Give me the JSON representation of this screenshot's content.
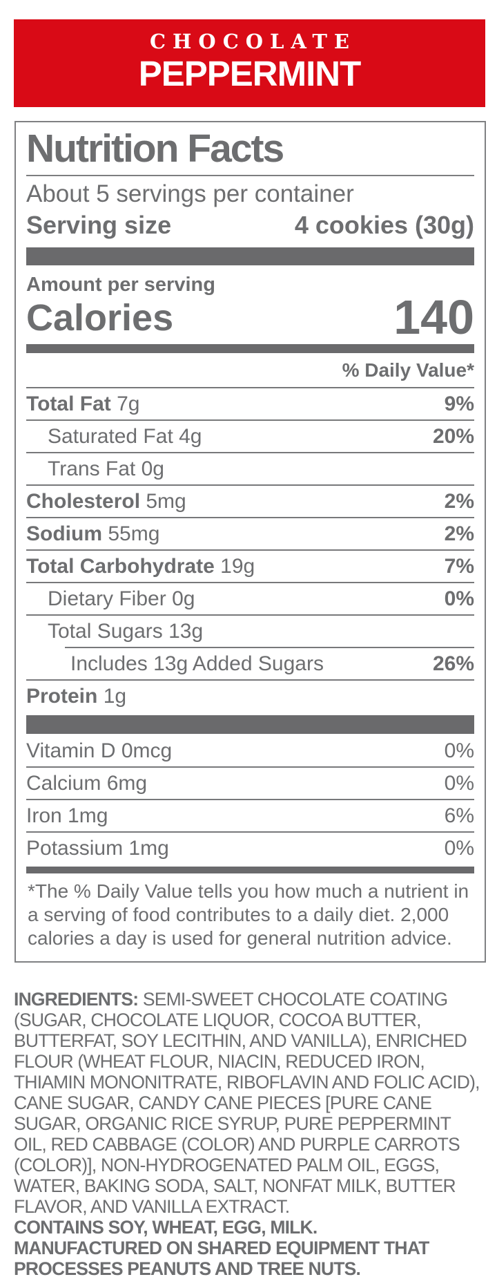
{
  "banner": {
    "line1": "CHOCOLATE",
    "line2": "PEPPERMINT",
    "bg_color": "#d90a16",
    "text_color": "#ffffff"
  },
  "nf": {
    "title": "Nutrition Facts",
    "servings_per_container": "About 5 servings per container",
    "serving_size_label": "Serving size",
    "serving_size_value": "4 cookies (30g)",
    "amount_per_serving_label": "Amount per serving",
    "calories_label": "Calories",
    "calories_value": "140",
    "daily_value_header": "% Daily Value*",
    "rows": [
      {
        "name": "Total Fat",
        "amount": "7g",
        "dv": "9%"
      },
      {
        "name": "Saturated Fat",
        "amount": "4g",
        "dv": ""
      },
      {
        "name": "Trans Fat",
        "amount": "0g",
        "dv": ""
      },
      {
        "name": "Cholesterol",
        "amount": "5mg",
        "dv": "2%"
      },
      {
        "name": "Sodium",
        "amount": "55mg",
        "dv": "2%"
      },
      {
        "name": "Total Carbohydrate",
        "amount": "19g",
        "dv": "7%"
      },
      {
        "name": "Dietary Fiber",
        "amount": "0g",
        "dv": "0%"
      },
      {
        "name": "Total Sugars",
        "amount": "13g",
        "dv": ""
      },
      {
        "name": "Includes 13g Added Sugars",
        "amount": "",
        "dv": "26%"
      },
      {
        "name": "Protein",
        "amount": "1g",
        "dv": ""
      }
    ],
    "saturated_fat_dv": "20%",
    "vitamins": [
      {
        "name": "Vitamin D",
        "amount": "0mcg",
        "dv": "0%"
      },
      {
        "name": "Calcium",
        "amount": "6mg",
        "dv": "0%"
      },
      {
        "name": "Iron",
        "amount": "1mg",
        "dv": "6%"
      },
      {
        "name": "Potassium",
        "amount": "1mg",
        "dv": "0%"
      }
    ],
    "footnote": "*The % Daily Value tells you how much a nutrient in a serving of food contributes to a daily diet. 2,000 calories a day is used for general nutrition advice."
  },
  "ingredients": {
    "label": "INGREDIENTS:",
    "text": " SEMI-SWEET CHOCOLATE COATING (SUGAR, CHOCOLATE LIQUOR, COCOA BUTTER, BUTTERFAT, SOY LECITHIN, AND VANILLA), ENRICHED FLOUR (WHEAT FLOUR, NIACIN, REDUCED IRON, THIAMIN MONONITRATE, RIBOFLAVIN AND FOLIC ACID), CANE SUGAR, CANDY CANE PIECES [PURE CANE SUGAR, ORGANIC RICE SYRUP, PURE PEPPERMINT OIL, RED CABBAGE (COLOR) AND PURPLE CARROTS (COLOR)], NON-HYDROGENATED PALM OIL, EGGS, WATER, BAKING SODA, SALT, NONFAT MILK, BUTTER FLAVOR, AND VANILLA EXTRACT.",
    "contains": "CONTAINS SOY, WHEAT, EGG, MILK.",
    "shared_equipment": "MANUFACTURED ON SHARED EQUIPMENT THAT PROCESSES PEANUTS AND TREE NUTS."
  },
  "colors": {
    "banner_red": "#d90a16",
    "label_gray": "#6d6e70",
    "bar_gray": "#6a6a6c",
    "border_gray": "#7f8082"
  }
}
